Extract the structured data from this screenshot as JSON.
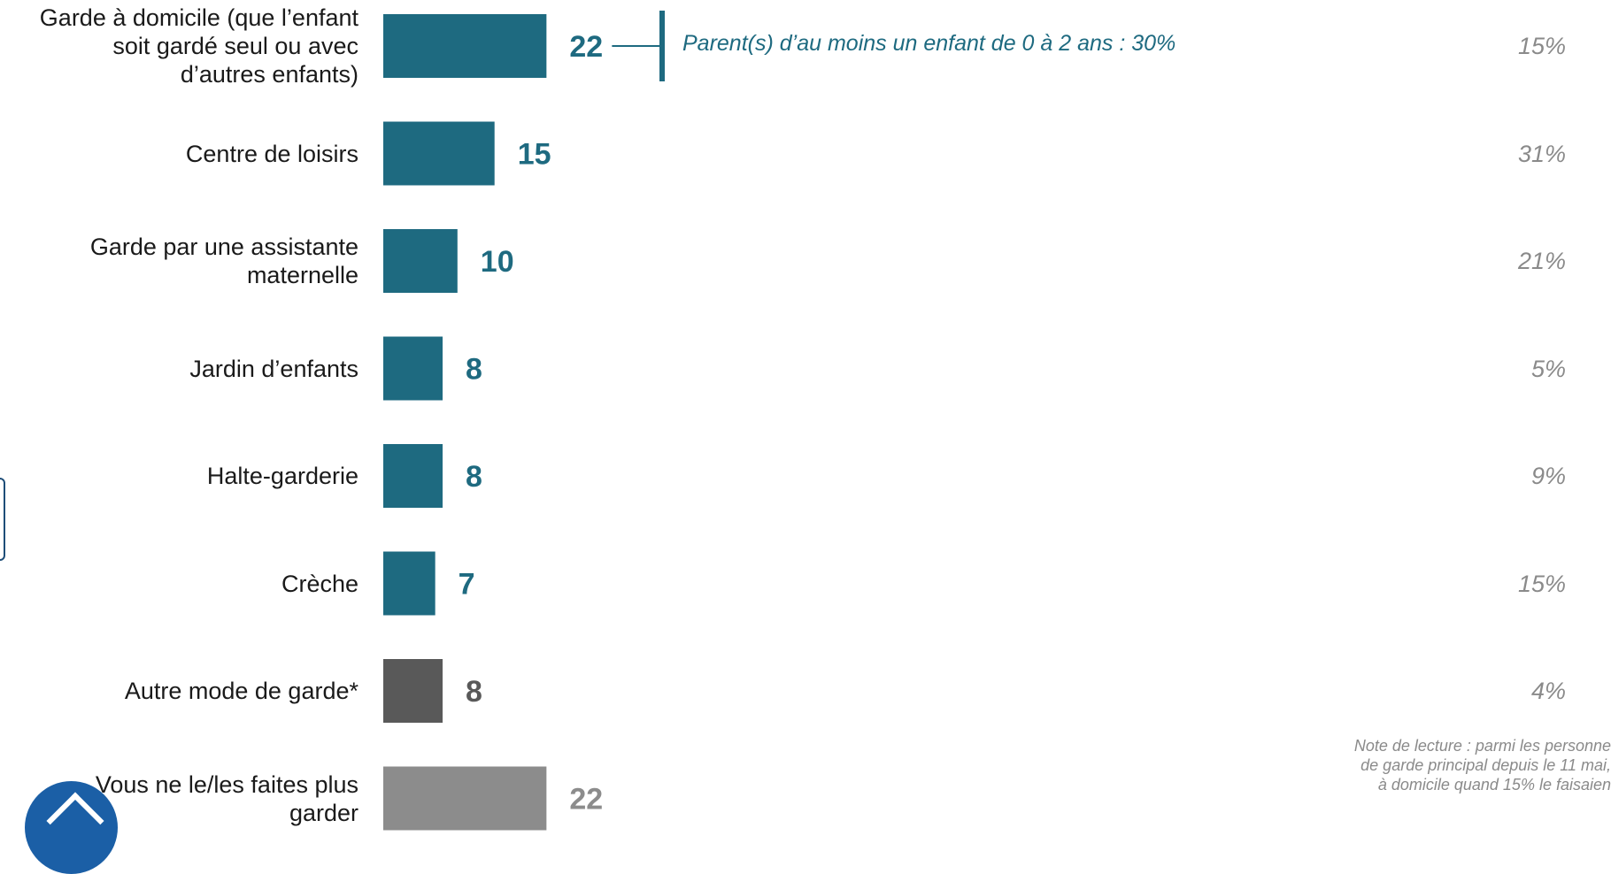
{
  "chart_data": {
    "type": "bar",
    "orientation": "horizontal",
    "categories": [
      [
        "Garde à domicile (que l’enfant",
        "soit gardé seul ou avec",
        "d’autres enfants)"
      ],
      [
        "Centre de loisirs"
      ],
      [
        "Garde par une assistante",
        "maternelle"
      ],
      [
        "Jardin d’enfants"
      ],
      [
        "Halte-garderie"
      ],
      [
        "Crèche"
      ],
      [
        "Autre mode de garde*"
      ],
      [
        "Vous ne le/les faites plus",
        "garder"
      ]
    ],
    "values": [
      22,
      15,
      10,
      8,
      8,
      7,
      8,
      22
    ],
    "value_labels": [
      "22",
      "15",
      "10",
      "8",
      "8",
      "7",
      "8",
      "22"
    ],
    "comparison_values": [
      "15%",
      "31%",
      "21%",
      "5%",
      "9%",
      "15%",
      "4%"
    ],
    "bar_colors": [
      "#1e6a80",
      "#1e6a80",
      "#1e6a80",
      "#1e6a80",
      "#1e6a80",
      "#1e6a80",
      "#595959",
      "#8c8c8c"
    ],
    "value_label_colors": [
      "#1e6a80",
      "#1e6a80",
      "#1e6a80",
      "#1e6a80",
      "#1e6a80",
      "#1e6a80",
      "#595959",
      "#8c8c8c"
    ],
    "callout": {
      "category_index": 0,
      "text": "Parent(s) d’au moins un enfant de 0 à 2 ans : 30%"
    },
    "note": [
      "Note de lecture : parmi les personne",
      "de garde principal depuis le 11 mai,",
      "à domicile quand 15% le faisaien"
    ]
  },
  "colors": {
    "accent": "#1e6a80",
    "dark_gray": "#595959",
    "light_gray": "#8c8c8c",
    "comparison_text": "#8a8a8a"
  }
}
